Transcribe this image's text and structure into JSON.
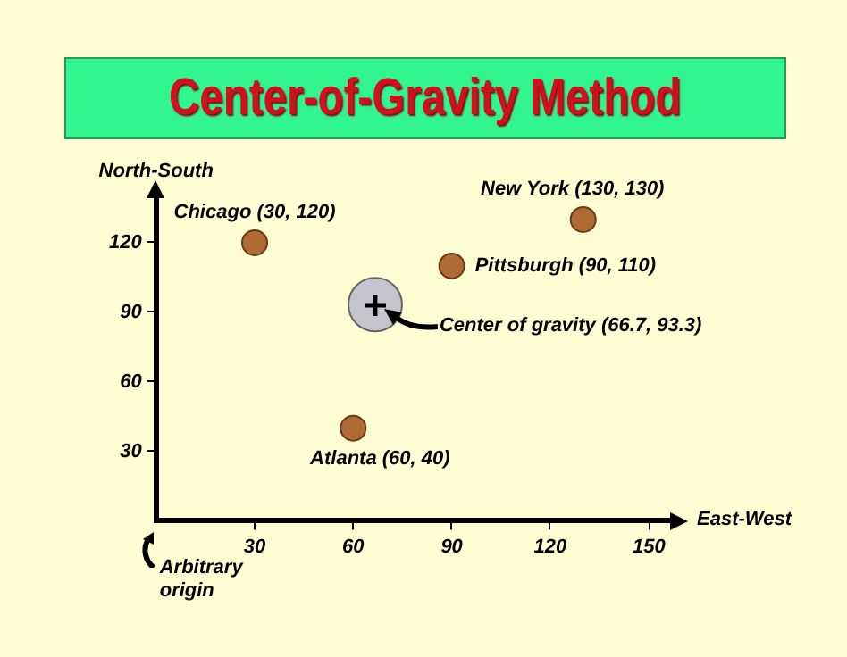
{
  "chart_data": {
    "type": "scatter",
    "title": "Center-of-Gravity Method",
    "xlabel": "East-West",
    "ylabel": "North-South",
    "xlim": [
      0,
      157
    ],
    "ylim": [
      0,
      140
    ],
    "xticks": [
      30,
      60,
      90,
      120,
      150
    ],
    "yticks": [
      30,
      60,
      90,
      120
    ],
    "series": [
      {
        "color": "#b06a34",
        "x": [
          30,
          130,
          90,
          60
        ],
        "values": [
          120,
          130,
          110,
          40
        ],
        "value_labels": [
          "Chicago (30, 120)",
          "New York (130, 130)",
          "Pittsburgh (90, 110)",
          "Atlanta (60, 40)"
        ]
      },
      {
        "color": "#c4c4cc",
        "x": [
          66.7
        ],
        "values": [
          93.3
        ],
        "value_labels": [
          "Center of gravity (66.7, 93.3)"
        ]
      }
    ],
    "annotations": [
      "Arbitrary origin"
    ],
    "grid": false,
    "legend": false,
    "marker": "circle"
  }
}
